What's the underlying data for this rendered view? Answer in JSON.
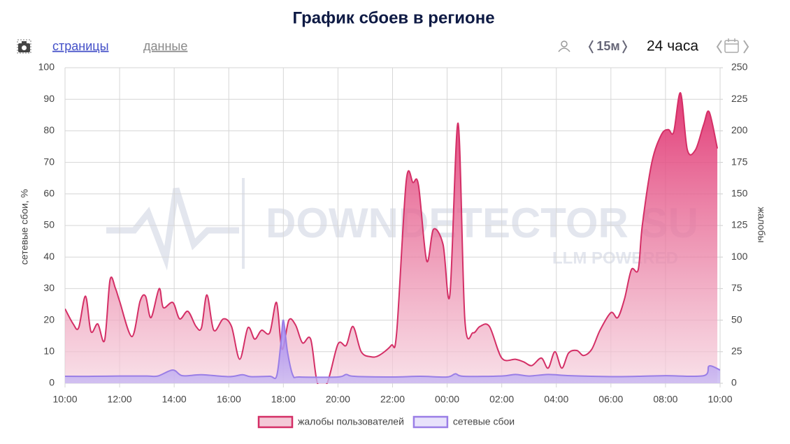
{
  "toolbar": {
    "links": [
      "страницы",
      "данные"
    ],
    "interval": "15м",
    "range": "24 часа"
  },
  "watermark": {
    "brand": "DOWNDETECTOR SU",
    "tagline": "LLM POWERED"
  },
  "chart_data": {
    "type": "area",
    "title": "График сбоев в регионе",
    "ylabel": "сетевые сбои, %",
    "y2label": "жалобы",
    "xlim": [
      0,
      24
    ],
    "xticks": [
      {
        "value": 0,
        "label": "10:00"
      },
      {
        "value": 2,
        "label": "12:00"
      },
      {
        "value": 4,
        "label": "14:00"
      },
      {
        "value": 6,
        "label": "16:00"
      },
      {
        "value": 8,
        "label": "18:00"
      },
      {
        "value": 10,
        "label": "20:00"
      },
      {
        "value": 12,
        "label": "22:00"
      },
      {
        "value": 14,
        "label": "00:00"
      },
      {
        "value": 16,
        "label": "02:00"
      },
      {
        "value": 18,
        "label": "04:00"
      },
      {
        "value": 20,
        "label": "06:00"
      },
      {
        "value": 22,
        "label": "08:00"
      },
      {
        "value": 24,
        "label": "10:00"
      }
    ],
    "ylim": [
      0,
      100
    ],
    "yticks": [
      0,
      10,
      20,
      30,
      40,
      50,
      60,
      70,
      80,
      90,
      100
    ],
    "y2lim": [
      0,
      250
    ],
    "y2ticks": [
      0,
      25,
      50,
      75,
      100,
      125,
      150,
      175,
      200,
      225,
      250
    ],
    "grid": true,
    "legend": "bottom",
    "series": [
      {
        "name": "жалобы пользователей",
        "color": "#d42f66",
        "axis": "y2",
        "x": [
          0,
          0.3,
          0.5,
          0.75,
          0.95,
          1.2,
          1.45,
          1.65,
          1.85,
          2.0,
          2.45,
          2.75,
          2.95,
          3.15,
          3.45,
          3.6,
          3.95,
          4.2,
          4.5,
          4.8,
          5.0,
          5.2,
          5.45,
          5.8,
          6.1,
          6.4,
          6.7,
          6.95,
          7.2,
          7.5,
          7.75,
          7.95,
          8.2,
          8.45,
          8.7,
          9.0,
          9.25,
          9.6,
          10.0,
          10.3,
          10.55,
          10.85,
          11.2,
          11.5,
          11.95,
          12.15,
          12.5,
          12.75,
          12.95,
          13.25,
          13.5,
          13.85,
          14.1,
          14.4,
          14.65,
          14.95,
          15.2,
          15.55,
          16.0,
          16.5,
          16.8,
          17.1,
          17.45,
          17.7,
          17.95,
          18.2,
          18.45,
          18.75,
          19.0,
          19.3,
          19.6,
          20.0,
          20.25,
          20.5,
          20.75,
          21.0,
          21.15,
          21.5,
          21.85,
          22.1,
          22.3,
          22.55,
          22.8,
          23.1,
          23.4,
          23.6,
          23.9
        ],
        "values": [
          59,
          47,
          44,
          69,
          41,
          47,
          34,
          82,
          75,
          65,
          37,
          65,
          69,
          52,
          75,
          60,
          64,
          51,
          57,
          45,
          44,
          70,
          42,
          51,
          45,
          19,
          44,
          35,
          42,
          40,
          64,
          27,
          50,
          46,
          32,
          35,
          0,
          0,
          31,
          30,
          45,
          25,
          21,
          22,
          30,
          40,
          160,
          159,
          157,
          97,
          122,
          110,
          70,
          206,
          50,
          40,
          45,
          45,
          20,
          19,
          17,
          14,
          20,
          12,
          25,
          12,
          24,
          26,
          22,
          27,
          42,
          56,
          52,
          67,
          90,
          90,
          125,
          175,
          197,
          201,
          199,
          230,
          185,
          185,
          205,
          215,
          186
        ]
      },
      {
        "name": "сетевые сбои",
        "color": "#9a7ee6",
        "x": [
          0,
          1,
          2,
          3,
          3.4,
          3.95,
          4.3,
          5,
          6,
          6.5,
          6.8,
          7.5,
          7.75,
          7.9,
          8.0,
          8.15,
          8.35,
          8.6,
          10,
          10.3,
          10.6,
          12,
          13,
          14,
          14.3,
          14.6,
          16,
          16.5,
          17,
          17.7,
          18.5,
          20,
          21,
          22,
          23.4,
          23.6,
          24
        ],
        "values": [
          2.2,
          2.2,
          2.3,
          2.3,
          2.3,
          4.2,
          2.4,
          2.7,
          2.1,
          2.7,
          2.1,
          2.2,
          2.2,
          12,
          20,
          10,
          2.5,
          2,
          2.0,
          2.8,
          2.2,
          2.0,
          2.2,
          2.0,
          3,
          2.2,
          2.3,
          2.8,
          2.3,
          2.8,
          2.4,
          2.1,
          2.2,
          2.4,
          2.4,
          5.5,
          4.2
        ]
      }
    ]
  }
}
